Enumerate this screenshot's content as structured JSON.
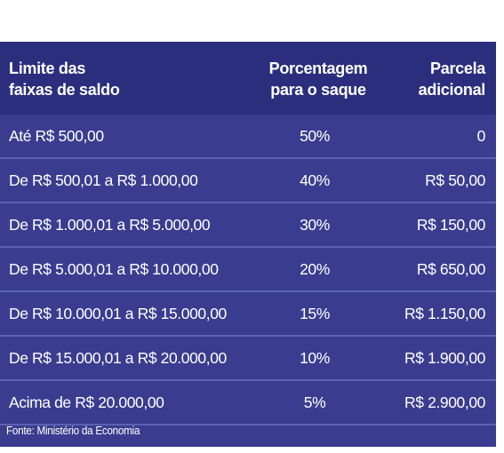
{
  "header": {
    "col1_line1": "Limite das",
    "col1_line2": "faixas de saldo",
    "col2_line1": "Porcentagem",
    "col2_line2": "para o saque",
    "col3_line1": "Parcela",
    "col3_line2": "adicional"
  },
  "rows": [
    {
      "range": "Até R$ 500,00",
      "percent": "50%",
      "extra": "0"
    },
    {
      "range": "De R$ 500,01 a R$ 1.000,00",
      "percent": "40%",
      "extra": "R$ 50,00"
    },
    {
      "range": "De R$ 1.000,01 a R$ 5.000,00",
      "percent": "30%",
      "extra": "R$ 150,00"
    },
    {
      "range": "De R$ 5.000,01 a R$ 10.000,00",
      "percent": "20%",
      "extra": "R$ 650,00"
    },
    {
      "range": "De R$ 10.000,01 a R$ 15.000,00",
      "percent": "15%",
      "extra": "R$ 1.150,00"
    },
    {
      "range": "De R$ 15.000,01 a R$ 20.000,00",
      "percent": "10%",
      "extra": "R$ 1.900,00"
    },
    {
      "range": "Acima de R$ 20.000,00",
      "percent": "5%",
      "extra": "R$ 2.900,00"
    }
  ],
  "source": "Fonte: Ministério da Economia",
  "colors": {
    "header_bg": "#2b2e7d",
    "body_bg": "#3a3d8f",
    "divider": "#5b62b5",
    "text": "#ffffff"
  }
}
